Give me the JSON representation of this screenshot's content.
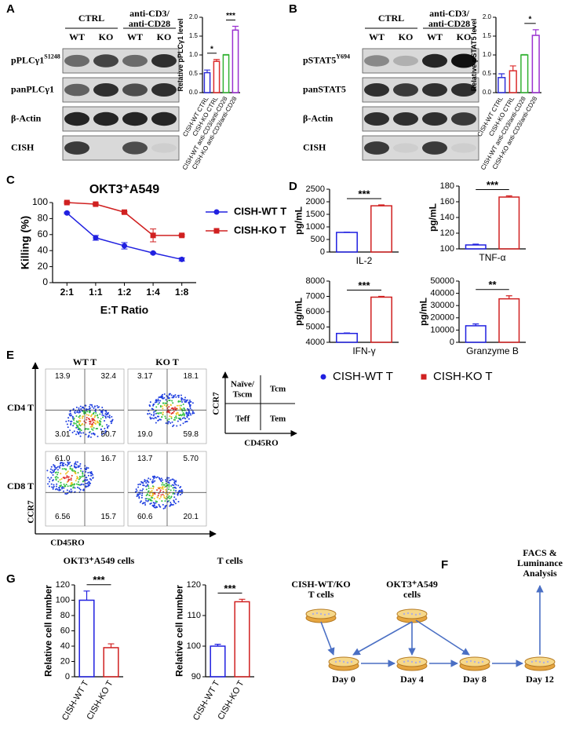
{
  "panel_labels": [
    "A",
    "B",
    "C",
    "D",
    "E",
    "F",
    "G"
  ],
  "blots": [
    {
      "headers": [
        "CTRL",
        [
          "anti-CD3/",
          "anti-CD28"
        ]
      ],
      "lanes": [
        "WT",
        "KO",
        "WT",
        "KO"
      ],
      "rows": [
        {
          "label": "pPLCγ1",
          "sup": "S1248"
        },
        {
          "label": "panPLCγ1"
        },
        {
          "label": "β-Actin"
        },
        {
          "label": "CISH"
        }
      ]
    },
    {
      "headers": [
        "CTRL",
        [
          "anti-CD3/",
          "anti-CD28"
        ]
      ],
      "lanes": [
        "WT",
        "KO",
        "WT",
        "KO"
      ],
      "rows": [
        {
          "label": "pSTAT5",
          "sup": "Y694"
        },
        {
          "label": "panSTAT5"
        },
        {
          "label": "β-Actin"
        },
        {
          "label": "CISH"
        }
      ]
    }
  ],
  "chart_data": [
    {
      "type": "bar",
      "ylabel": "Relative pPLCγ1 level",
      "categories": [
        "CISH-WT CTRL",
        "CISH-KO CTRL",
        "CISH-WT anti-CD3/anti-CD28",
        "CISH-KO anti-CD3/anti-CD28"
      ],
      "values": [
        0.53,
        0.83,
        1.0,
        1.66
      ],
      "errors": [
        0.07,
        0.05,
        0.01,
        0.1
      ],
      "colors": [
        "#2f2fd8",
        "#dc2b2b",
        "#33b233",
        "#9a2fd0"
      ],
      "ylim": [
        0,
        2
      ],
      "yticks": [
        {
          "value": 0,
          "label": "0.0"
        },
        {
          "value": 0.5,
          "label": "0.5"
        },
        {
          "value": 1,
          "label": "1.0"
        },
        {
          "value": 1.5,
          "label": "1.5"
        },
        {
          "value": 2,
          "label": "2.0"
        }
      ],
      "brackets": [
        {
          "label": "*",
          "between": [
            0,
            1
          ]
        },
        {
          "label": "***",
          "between": [
            2,
            3
          ]
        }
      ]
    },
    {
      "type": "bar",
      "ylabel": "Relative pSTAT5 level",
      "categories": [
        "CISH-WT CTRL",
        "CISH-KO CTRL",
        "CISH-WT anti-CD3/anti-CD28",
        "CISH-KO anti-CD3/anti-CD28"
      ],
      "values": [
        0.4,
        0.58,
        1.0,
        1.52
      ],
      "errors": [
        0.1,
        0.13,
        0.01,
        0.15
      ],
      "colors": [
        "#2f2fd8",
        "#dc2b2b",
        "#33b233",
        "#9a2fd0"
      ],
      "ylim": [
        0,
        2
      ],
      "yticks": [
        {
          "value": 0,
          "label": "0.0"
        },
        {
          "value": 0.5,
          "label": "0.5"
        },
        {
          "value": 1,
          "label": "1.0"
        },
        {
          "value": 1.5,
          "label": "1.5"
        },
        {
          "value": 2,
          "label": "2.0"
        }
      ],
      "brackets": [
        {
          "label": "*",
          "between": [
            2,
            3
          ]
        }
      ]
    },
    {
      "type": "line",
      "title": "OKT3⁺A549",
      "xlabel": "E:T Ratio",
      "ylabel": "Killing (%)",
      "categories": [
        "2:1",
        "1:1",
        "1:2",
        "1:4",
        "1:8"
      ],
      "series": [
        {
          "name": "CISH-WT T",
          "color": "#2020e0",
          "values": [
            87,
            56,
            46,
            37,
            29
          ],
          "errors": [
            1,
            3,
            4,
            1,
            2
          ]
        },
        {
          "name": "CISH-KO T",
          "color": "#d02020",
          "values": [
            100,
            98,
            88,
            59,
            59
          ],
          "errors": [
            1,
            1,
            1,
            8,
            1
          ]
        }
      ],
      "ylim": [
        0,
        100
      ],
      "yticks": [
        0,
        20,
        40,
        60,
        80,
        100
      ]
    },
    {
      "type": "bar",
      "xlabel": "IL-2",
      "ylabel": "pg/mL",
      "values": [
        780,
        1840
      ],
      "errors": [
        10,
        35
      ],
      "colors": [
        "#2020e0",
        "#d02020"
      ],
      "ylim": [
        0,
        2500
      ],
      "yticks": [
        0,
        500,
        1000,
        1500,
        2000,
        2500
      ],
      "brackets": [
        {
          "label": "***",
          "between": [
            0,
            1
          ]
        }
      ]
    },
    {
      "type": "bar",
      "xlabel": "TNF-α",
      "ylabel": "pg/mL",
      "values": [
        105,
        166
      ],
      "errors": [
        1,
        1.5
      ],
      "colors": [
        "#2020e0",
        "#d02020"
      ],
      "ylim": [
        100,
        180
      ],
      "yticks": [
        100,
        120,
        140,
        160,
        180
      ],
      "brackets": [
        {
          "label": "***",
          "between": [
            0,
            1
          ]
        }
      ]
    },
    {
      "type": "bar",
      "xlabel": "IFN-γ",
      "ylabel": "pg/mL",
      "values": [
        4580,
        6950
      ],
      "errors": [
        30,
        50
      ],
      "colors": [
        "#2020e0",
        "#d02020"
      ],
      "ylim": [
        4000,
        8000
      ],
      "yticks": [
        4000,
        5000,
        6000,
        7000,
        8000
      ],
      "brackets": [
        {
          "label": "***",
          "between": [
            0,
            1
          ]
        }
      ]
    },
    {
      "type": "bar",
      "xlabel": "Granzyme B",
      "ylabel": "pg/mL",
      "values": [
        13500,
        35500
      ],
      "errors": [
        1500,
        2500
      ],
      "colors": [
        "#2020e0",
        "#d02020"
      ],
      "ylim": [
        0,
        50000
      ],
      "yticks": [
        0,
        10000,
        20000,
        30000,
        40000,
        50000
      ],
      "brackets": [
        {
          "label": "**",
          "between": [
            0,
            1
          ]
        }
      ]
    },
    {
      "type": "bar",
      "title": "OKT3⁺A549 cells",
      "ylabel": "Relative cell number",
      "categories": [
        "CISH-WT T",
        "CISH-KO T"
      ],
      "values": [
        100,
        38
      ],
      "errors": [
        12,
        5
      ],
      "colors": [
        "#2020e0",
        "#d02020"
      ],
      "ylim": [
        0,
        120
      ],
      "yticks": [
        0,
        20,
        40,
        60,
        80,
        100,
        120
      ],
      "brackets": [
        {
          "label": "***",
          "between": [
            0,
            1
          ]
        }
      ]
    },
    {
      "type": "bar",
      "title": "T cells",
      "ylabel": "Relative cell number",
      "categories": [
        "CISH-WT T",
        "CISH-KO T"
      ],
      "values": [
        100,
        114.5
      ],
      "errors": [
        0.6,
        0.8
      ],
      "colors": [
        "#2020e0",
        "#d02020"
      ],
      "ylim": [
        90,
        120
      ],
      "yticks": [
        90,
        100,
        110,
        120
      ],
      "brackets": [
        {
          "label": "***",
          "between": [
            0,
            1
          ]
        }
      ]
    }
  ],
  "cytokine_legend": [
    {
      "name": "CISH-WT T",
      "color": "#2020e0"
    },
    {
      "name": "CISH-KO T",
      "color": "#d02020"
    }
  ],
  "flow": {
    "columns": [
      "WT T",
      "KO T"
    ],
    "rows": [
      "CD4 T",
      "CD8 T"
    ],
    "y_axis": "CCR7",
    "x_axis": "CD45RO",
    "quadrants": [
      [
        [
          "13.9",
          "32.4",
          "3.01",
          "50.7"
        ],
        [
          "3.17",
          "18.1",
          "19.0",
          "59.8"
        ]
      ],
      [
        [
          "61.0",
          "16.7",
          "6.56",
          "15.7"
        ],
        [
          "13.7",
          "5.70",
          "60.6",
          "20.1"
        ]
      ]
    ],
    "key": {
      "cells": [
        [
          "Naïve/",
          "Tscm"
        ],
        [
          "Tcm"
        ],
        [
          "Teff"
        ],
        [
          "Tem"
        ]
      ],
      "y_axis": "CCR7",
      "x_axis": "CD45RO"
    }
  },
  "diagram": {
    "nodes": [
      {
        "label": [
          "CISH-WT/KO",
          "T cells"
        ]
      },
      {
        "label": [
          "OKT3⁺A549",
          "cells"
        ]
      },
      {
        "label": [
          "FACS &",
          "Luminance",
          "Analysis"
        ]
      }
    ],
    "days": [
      "Day 0",
      "Day 4",
      "Day 8",
      "Day 12"
    ]
  }
}
